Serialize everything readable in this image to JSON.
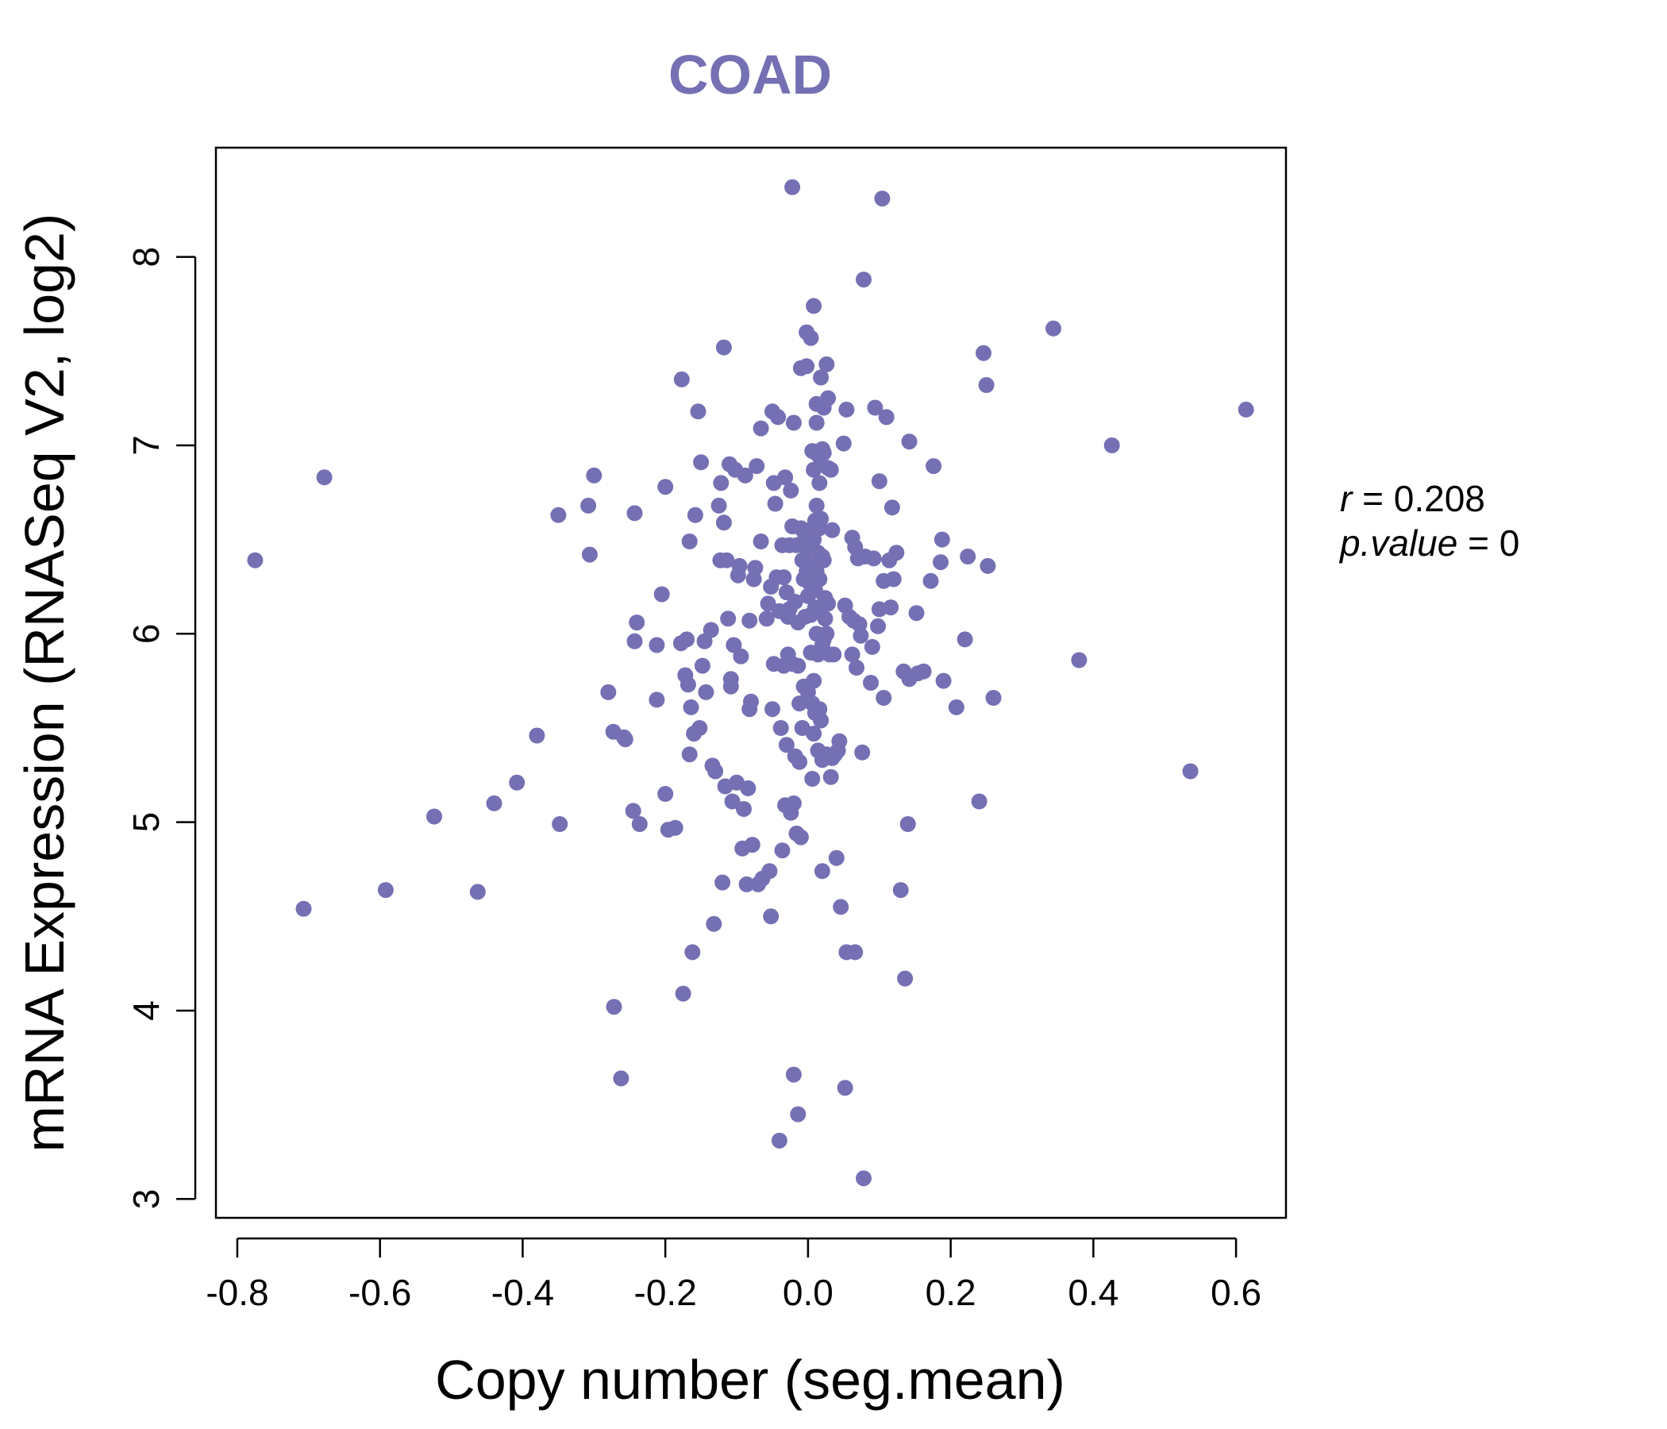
{
  "chart_data": {
    "type": "scatter",
    "title": "COAD",
    "xlabel": "Copy number (seg.mean)",
    "ylabel": "mRNA Expression (RNASeq V2, log2)",
    "xlim": [
      -0.83,
      0.67
    ],
    "ylim": [
      2.9,
      8.58
    ],
    "xticks": [
      -0.8,
      -0.6,
      -0.4,
      -0.2,
      0.0,
      0.2,
      0.4,
      0.6
    ],
    "xtick_labels": [
      "-0.8",
      "-0.6",
      "-0.4",
      "-0.2",
      "0.0",
      "0.2",
      "0.4",
      "0.6"
    ],
    "yticks": [
      3,
      4,
      5,
      6,
      7,
      8
    ],
    "ytick_labels": [
      "3",
      "4",
      "5",
      "6",
      "7",
      "8"
    ],
    "grid": false,
    "legend": "none",
    "colors": {
      "points": "#7570b3",
      "title": "#7570b3",
      "axes": "#000000"
    },
    "stats": {
      "r_label": "r",
      "r_value": "0.208",
      "p_label": "p.value",
      "p_value": "0"
    },
    "points": [
      [
        -0.775,
        6.39
      ],
      [
        -0.707,
        4.54
      ],
      [
        -0.678,
        6.83
      ],
      [
        -0.592,
        4.64
      ],
      [
        -0.524,
        5.03
      ],
      [
        -0.463,
        4.63
      ],
      [
        -0.44,
        5.1
      ],
      [
        -0.408,
        5.21
      ],
      [
        -0.38,
        5.46
      ],
      [
        -0.348,
        4.99
      ],
      [
        -0.35,
        6.63
      ],
      [
        -0.308,
        6.68
      ],
      [
        -0.306,
        6.42
      ],
      [
        -0.3,
        6.84
      ],
      [
        -0.28,
        5.69
      ],
      [
        -0.272,
        4.02
      ],
      [
        -0.273,
        5.48
      ],
      [
        -0.262,
        3.64
      ],
      [
        -0.258,
        5.45
      ],
      [
        -0.256,
        5.44
      ],
      [
        -0.245,
        5.06
      ],
      [
        -0.243,
        6.64
      ],
      [
        -0.243,
        5.96
      ],
      [
        -0.24,
        6.06
      ],
      [
        -0.236,
        4.99
      ],
      [
        -0.212,
        5.94
      ],
      [
        -0.212,
        5.65
      ],
      [
        -0.205,
        6.21
      ],
      [
        -0.2,
        5.15
      ],
      [
        -0.2,
        6.78
      ],
      [
        -0.196,
        4.96
      ],
      [
        -0.186,
        4.97
      ],
      [
        -0.178,
        5.95
      ],
      [
        -0.177,
        7.35
      ],
      [
        -0.175,
        4.09
      ],
      [
        -0.172,
        5.78
      ],
      [
        -0.17,
        5.97
      ],
      [
        -0.168,
        5.73
      ],
      [
        -0.166,
        6.49
      ],
      [
        -0.166,
        5.36
      ],
      [
        -0.164,
        5.61
      ],
      [
        -0.162,
        4.31
      ],
      [
        -0.16,
        5.47
      ],
      [
        -0.158,
        6.63
      ],
      [
        -0.154,
        7.18
      ],
      [
        -0.152,
        5.5
      ],
      [
        -0.15,
        6.91
      ],
      [
        -0.148,
        5.83
      ],
      [
        -0.145,
        5.96
      ],
      [
        -0.143,
        5.69
      ],
      [
        -0.136,
        6.02
      ],
      [
        -0.134,
        5.3
      ],
      [
        -0.132,
        4.46
      ],
      [
        -0.13,
        5.27
      ],
      [
        -0.125,
        6.68
      ],
      [
        -0.123,
        6.39
      ],
      [
        -0.122,
        6.8
      ],
      [
        -0.12,
        4.68
      ],
      [
        -0.118,
        7.52
      ],
      [
        -0.118,
        6.59
      ],
      [
        -0.116,
        5.19
      ],
      [
        -0.114,
        6.39
      ],
      [
        -0.112,
        6.08
      ],
      [
        -0.11,
        6.9
      ],
      [
        -0.108,
        5.72
      ],
      [
        -0.108,
        5.76
      ],
      [
        -0.106,
        5.11
      ],
      [
        -0.104,
        5.94
      ],
      [
        -0.102,
        6.87
      ],
      [
        -0.1,
        5.21
      ],
      [
        -0.098,
        6.31
      ],
      [
        -0.096,
        6.36
      ],
      [
        -0.094,
        5.88
      ],
      [
        -0.092,
        4.86
      ],
      [
        -0.09,
        5.07
      ],
      [
        -0.088,
        6.84
      ],
      [
        -0.086,
        4.67
      ],
      [
        -0.084,
        5.18
      ],
      [
        -0.082,
        5.6
      ],
      [
        -0.082,
        6.07
      ],
      [
        -0.08,
        5.64
      ],
      [
        -0.078,
        4.88
      ],
      [
        -0.076,
        6.29
      ],
      [
        -0.074,
        6.35
      ],
      [
        -0.072,
        6.89
      ],
      [
        -0.07,
        4.67
      ],
      [
        -0.066,
        6.49
      ],
      [
        -0.066,
        7.09
      ],
      [
        -0.064,
        4.7
      ],
      [
        -0.058,
        6.08
      ],
      [
        -0.056,
        6.16
      ],
      [
        -0.054,
        4.74
      ],
      [
        -0.052,
        4.5
      ],
      [
        -0.052,
        6.25
      ],
      [
        -0.05,
        7.18
      ],
      [
        -0.05,
        5.6
      ],
      [
        -0.048,
        6.8
      ],
      [
        -0.048,
        5.84
      ],
      [
        -0.046,
        6.69
      ],
      [
        -0.044,
        6.3
      ],
      [
        -0.042,
        7.15
      ],
      [
        -0.04,
        6.12
      ],
      [
        -0.04,
        3.31
      ],
      [
        -0.038,
        5.5
      ],
      [
        -0.036,
        4.85
      ],
      [
        -0.036,
        6.47
      ],
      [
        -0.034,
        6.3
      ],
      [
        -0.034,
        5.83
      ],
      [
        -0.032,
        6.83
      ],
      [
        -0.032,
        5.09
      ],
      [
        -0.03,
        6.22
      ],
      [
        -0.03,
        5.41
      ],
      [
        -0.028,
        5.89
      ],
      [
        -0.028,
        6.09
      ],
      [
        -0.026,
        6.47
      ],
      [
        -0.026,
        6.13
      ],
      [
        -0.024,
        5.05
      ],
      [
        -0.024,
        6.76
      ],
      [
        -0.022,
        8.37
      ],
      [
        -0.022,
        5.84
      ],
      [
        -0.022,
        6.57
      ],
      [
        -0.02,
        3.66
      ],
      [
        -0.02,
        5.1
      ],
      [
        -0.02,
        7.12
      ],
      [
        -0.018,
        6.17
      ],
      [
        -0.018,
        5.35
      ],
      [
        -0.016,
        6.47
      ],
      [
        -0.016,
        4.94
      ],
      [
        -0.014,
        3.45
      ],
      [
        -0.014,
        5.83
      ],
      [
        -0.014,
        6.06
      ],
      [
        -0.012,
        5.32
      ],
      [
        -0.012,
        5.63
      ],
      [
        -0.01,
        6.56
      ],
      [
        -0.01,
        4.92
      ],
      [
        -0.01,
        7.41
      ],
      [
        -0.008,
        6.39
      ],
      [
        -0.008,
        5.5
      ],
      [
        -0.006,
        6.29
      ],
      [
        -0.006,
        5.72
      ],
      [
        -0.004,
        6.52
      ],
      [
        -0.004,
        6.09
      ],
      [
        -0.002,
        7.6
      ],
      [
        -0.002,
        7.42
      ],
      [
        -0.002,
        6.33
      ],
      [
        0,
        6.44
      ],
      [
        0,
        5.69
      ],
      [
        0,
        6.2
      ],
      [
        0.002,
        6.55
      ],
      [
        0.002,
        6.27
      ],
      [
        0.004,
        7.57
      ],
      [
        0.004,
        6.1
      ],
      [
        0.004,
        5.9
      ],
      [
        0.006,
        6.97
      ],
      [
        0.006,
        6.36
      ],
      [
        0.006,
        6.48
      ],
      [
        0.006,
        5.63
      ],
      [
        0.006,
        5.23
      ],
      [
        0.008,
        7.74
      ],
      [
        0.008,
        6.87
      ],
      [
        0.008,
        6.5
      ],
      [
        0.008,
        5.75
      ],
      [
        0.008,
        5.47
      ],
      [
        0.01,
        6.6
      ],
      [
        0.01,
        6.23
      ],
      [
        0.01,
        6.14
      ],
      [
        0.01,
        5.58
      ],
      [
        0.012,
        7.22
      ],
      [
        0.012,
        7.12
      ],
      [
        0.012,
        6.68
      ],
      [
        0.012,
        6.33
      ],
      [
        0.012,
        6.0
      ],
      [
        0.014,
        6.95
      ],
      [
        0.014,
        6.43
      ],
      [
        0.014,
        5.89
      ],
      [
        0.014,
        5.38
      ],
      [
        0.016,
        6.8
      ],
      [
        0.016,
        6.56
      ],
      [
        0.016,
        6.29
      ],
      [
        0.016,
        5.6
      ],
      [
        0.018,
        7.36
      ],
      [
        0.018,
        6.9
      ],
      [
        0.018,
        6.61
      ],
      [
        0.018,
        6.13
      ],
      [
        0.018,
        5.54
      ],
      [
        0.02,
        6.98
      ],
      [
        0.02,
        6.41
      ],
      [
        0.02,
        5.94
      ],
      [
        0.02,
        5.33
      ],
      [
        0.02,
        4.74
      ],
      [
        0.022,
        7.2
      ],
      [
        0.022,
        6.96
      ],
      [
        0.022,
        6.39
      ],
      [
        0.022,
        5.97
      ],
      [
        0.024,
        6.19
      ],
      [
        0.024,
        6.08
      ],
      [
        0.026,
        7.43
      ],
      [
        0.026,
        6.0
      ],
      [
        0.026,
        5.36
      ],
      [
        0.028,
        7.25
      ],
      [
        0.028,
        6.88
      ],
      [
        0.028,
        6.16
      ],
      [
        0.03,
        5.89
      ],
      [
        0.032,
        6.87
      ],
      [
        0.032,
        5.24
      ],
      [
        0.034,
        6.55
      ],
      [
        0.034,
        5.34
      ],
      [
        0.036,
        5.89
      ],
      [
        0.038,
        5.36
      ],
      [
        0.04,
        4.81
      ],
      [
        0.042,
        5.38
      ],
      [
        0.044,
        5.43
      ],
      [
        0.046,
        4.55
      ],
      [
        0.05,
        7.01
      ],
      [
        0.052,
        6.15
      ],
      [
        0.052,
        3.59
      ],
      [
        0.054,
        4.31
      ],
      [
        0.054,
        7.19
      ],
      [
        0.058,
        6.09
      ],
      [
        0.062,
        6.51
      ],
      [
        0.062,
        5.89
      ],
      [
        0.064,
        6.07
      ],
      [
        0.066,
        4.31
      ],
      [
        0.066,
        6.46
      ],
      [
        0.068,
        5.82
      ],
      [
        0.07,
        6.4
      ],
      [
        0.072,
        6.05
      ],
      [
        0.074,
        5.99
      ],
      [
        0.076,
        5.37
      ],
      [
        0.078,
        7.88
      ],
      [
        0.078,
        3.11
      ],
      [
        0.08,
        6.41
      ],
      [
        0.088,
        5.74
      ],
      [
        0.09,
        5.93
      ],
      [
        0.092,
        6.4
      ],
      [
        0.094,
        7.2
      ],
      [
        0.098,
        6.04
      ],
      [
        0.1,
        6.13
      ],
      [
        0.1,
        6.81
      ],
      [
        0.104,
        8.31
      ],
      [
        0.106,
        6.28
      ],
      [
        0.106,
        5.66
      ],
      [
        0.11,
        7.15
      ],
      [
        0.114,
        6.39
      ],
      [
        0.116,
        6.14
      ],
      [
        0.118,
        6.67
      ],
      [
        0.12,
        6.29
      ],
      [
        0.124,
        6.43
      ],
      [
        0.13,
        4.64
      ],
      [
        0.134,
        5.8
      ],
      [
        0.136,
        4.17
      ],
      [
        0.14,
        4.99
      ],
      [
        0.142,
        7.02
      ],
      [
        0.142,
        5.76
      ],
      [
        0.152,
        6.11
      ],
      [
        0.154,
        5.79
      ],
      [
        0.162,
        5.8
      ],
      [
        0.172,
        6.28
      ],
      [
        0.176,
        6.89
      ],
      [
        0.186,
        6.38
      ],
      [
        0.188,
        6.5
      ],
      [
        0.19,
        5.75
      ],
      [
        0.208,
        5.61
      ],
      [
        0.22,
        5.97
      ],
      [
        0.224,
        6.41
      ],
      [
        0.24,
        5.11
      ],
      [
        0.246,
        7.49
      ],
      [
        0.25,
        7.32
      ],
      [
        0.252,
        6.36
      ],
      [
        0.26,
        5.66
      ],
      [
        0.344,
        7.62
      ],
      [
        0.38,
        5.86
      ],
      [
        0.426,
        7.0
      ],
      [
        0.536,
        5.27
      ],
      [
        0.614,
        7.19
      ]
    ]
  }
}
